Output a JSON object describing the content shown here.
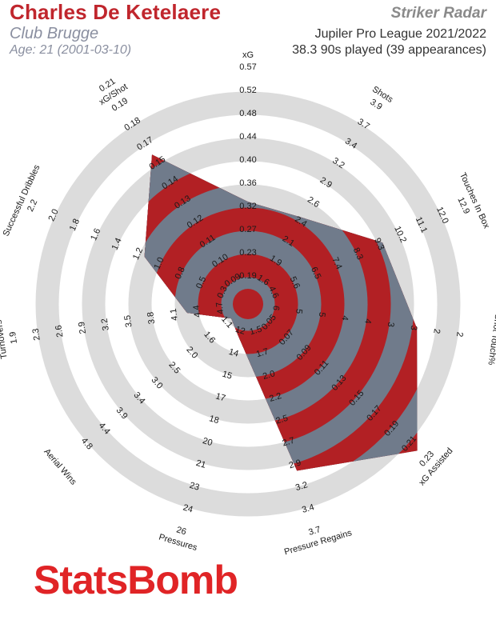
{
  "header": {
    "player_name": "Charles De Ketelaere",
    "club": "Club Brugge",
    "age": "Age: 21 (2001-03-10)",
    "template": "Striker Radar",
    "competition": "Jupiler Pro League 2021/2022",
    "minutes": "38.3 90s played (39 appearances)"
  },
  "logo": {
    "text": "StatsBomb"
  },
  "colors": {
    "ring": "#dcdcdc",
    "fill_red": "#b22024",
    "fill_slate": "#707b8b",
    "text": "#1a1a1a",
    "brand": "#c0262d"
  },
  "chart_data": {
    "type": "radar",
    "metrics": [
      {
        "name": "xG",
        "ticks": [
          "0.19",
          "0.23",
          "0.27",
          "0.32",
          "0.36",
          "0.40",
          "0.44",
          "0.48",
          "0.52",
          "0.57"
        ],
        "value": 0.33
      },
      {
        "name": "Shots",
        "ticks": [
          "1.6",
          "1.9",
          "2.1",
          "2.4",
          "2.6",
          "2.9",
          "3.2",
          "3.4",
          "3.7",
          "3.9"
        ],
        "value": 2.45
      },
      {
        "name": "Touches In Box",
        "ticks": [
          "4.6",
          "5.6",
          "6.5",
          "7.4",
          "8.3",
          "9.3",
          "10.2",
          "11.1",
          "12.0",
          "12.9"
        ],
        "value": 9.5
      },
      {
        "name": "Shot Touch%",
        "ticks": [
          "6",
          "5",
          "5",
          "4",
          "4",
          "3",
          "3",
          "2",
          "2",
          ""
        ],
        "value": 2.8
      },
      {
        "name": "xG Assisted",
        "ticks": [
          "0.05",
          "0.07",
          "0.09",
          "0.11",
          "0.13",
          "0.15",
          "0.17",
          "0.19",
          "0.21",
          "0.23"
        ],
        "value": 0.22
      },
      {
        "name": "Pressure Regains",
        "ticks": [
          "1.5",
          "1.7",
          "2.0",
          "2.2",
          "2.5",
          "2.7",
          "2.9",
          "3.2",
          "3.4",
          "3.7"
        ],
        "value": 3.0
      },
      {
        "name": "Pressures",
        "ticks": [
          "12",
          "14",
          "15",
          "17",
          "18",
          "20",
          "21",
          "23",
          "24",
          "26"
        ],
        "value": 12.6
      },
      {
        "name": "Aerial Wins",
        "ticks": [
          "1.1",
          "1.6",
          "2.0",
          "2.5",
          "3.0",
          "3.4",
          "3.9",
          "4.4",
          "4.8",
          ""
        ],
        "value": 1.0
      },
      {
        "name": "Turnovers",
        "ticks": [
          "4.7",
          "4.4",
          "4.1",
          "3.8",
          "3.5",
          "3.2",
          "2.9",
          "2.6",
          "2.3",
          "1.9"
        ],
        "value": 4.25
      },
      {
        "name": "Successful Dribbles",
        "ticks": [
          "0.3",
          "0.5",
          "0.8",
          "1.0",
          "1.2",
          "1.4",
          "1.6",
          "1.8",
          "2.0",
          "2.2"
        ],
        "value": 1.15
      },
      {
        "name": "xG/Shot",
        "ticks": [
          "0.09",
          "0.10",
          "0.11",
          "0.12",
          "0.13",
          "0.14",
          "0.15",
          "0.17",
          "0.18",
          "0.19",
          "0.21"
        ],
        "value": 0.16
      }
    ]
  }
}
